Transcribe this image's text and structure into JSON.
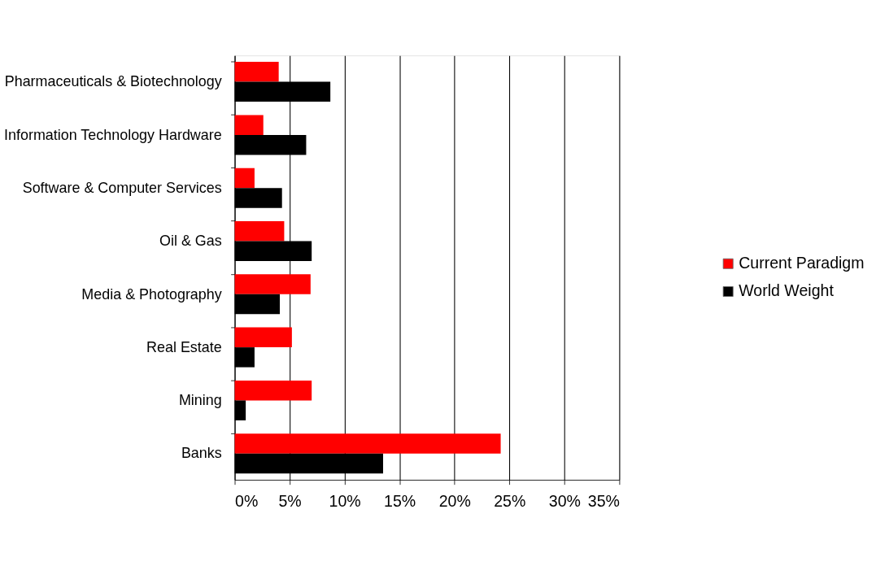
{
  "chart_data": {
    "type": "bar",
    "orientation": "horizontal",
    "categories": [
      "Pharmaceuticals & Biotechnology",
      "Information Technology Hardware",
      "Software & Computer Services",
      "Oil & Gas",
      "Media & Photography",
      "Real Estate",
      "Mining",
      "Banks"
    ],
    "series": [
      {
        "name": "Current Paradigm",
        "color": "#ff0000",
        "values": [
          4.0,
          2.6,
          1.8,
          4.5,
          6.9,
          5.2,
          7.0,
          24.2
        ]
      },
      {
        "name": "World Weight",
        "color": "#000000",
        "values": [
          8.7,
          6.5,
          4.3,
          7.0,
          4.1,
          1.8,
          1.0,
          13.5
        ]
      }
    ],
    "xlim": [
      0,
      35
    ],
    "xticks": [
      {
        "value": 0,
        "label": "0%"
      },
      {
        "value": 5,
        "label": "5%"
      },
      {
        "value": 10,
        "label": "10%"
      },
      {
        "value": 15,
        "label": "15%"
      },
      {
        "value": 20,
        "label": "20%"
      },
      {
        "value": 25,
        "label": "25%"
      },
      {
        "value": 30,
        "label": "30%"
      },
      {
        "value": 35,
        "label": "35%"
      }
    ],
    "grid": "x",
    "legend": "right"
  }
}
